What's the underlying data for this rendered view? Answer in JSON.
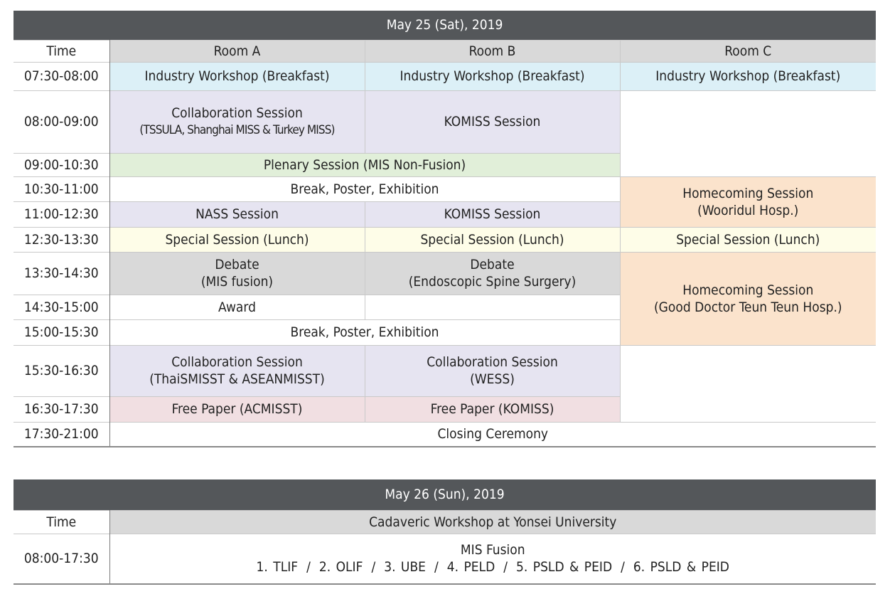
{
  "day1": {
    "title": "May 25 (Sat), 2019",
    "time_label": "Time",
    "rooms": [
      "Room A",
      "Room B",
      "Room C"
    ],
    "times": [
      "07:30-08:00",
      "08:00-09:00",
      "09:00-10:30",
      "10:30-11:00",
      "11:00-12:30",
      "12:30-13:30",
      "13:30-14:30",
      "14:30-15:00",
      "15:00-15:30",
      "15:30-16:30",
      "16:30-17:30",
      "17:30-21:00"
    ],
    "sessions": {
      "industry_a": "Industry Workshop (Breakfast)",
      "industry_b": "Industry Workshop (Breakfast)",
      "industry_c": "Industry Workshop (Breakfast)",
      "collab1_line1": "Collaboration Session",
      "collab1_line2": "(TSSULA, Shanghai MISS & Turkey MISS)",
      "komiss_b1": "KOMISS Session",
      "plenary": "Plenary Session (MIS Non-Fusion)",
      "break1": "Break, Poster, Exhibition",
      "homecoming1_line1": "Homecoming Session",
      "homecoming1_line2": "(Wooridul Hosp.)",
      "nass": "NASS Session",
      "komiss_b2": "KOMISS Session",
      "special_a": "Special Session (Lunch)",
      "special_b": "Special Session (Lunch)",
      "special_c": "Special Session (Lunch)",
      "debate_a_line1": "Debate",
      "debate_a_line2": "(MIS fusion)",
      "debate_b_line1": "Debate",
      "debate_b_line2": "(Endoscopic Spine Surgery)",
      "homecoming2_line1": "Homecoming Session",
      "homecoming2_line2": "(Good Doctor Teun Teun Hosp.)",
      "award": "Award",
      "break2": "Break, Poster, Exhibition",
      "collab2_line1": "Collaboration Session",
      "collab2_line2": "(ThaiSMISST & ASEANMISST)",
      "collab3_line1": "Collaboration Session",
      "collab3_line2": "(WESS)",
      "freepaper_a": "Free Paper (ACMISST)",
      "freepaper_b": "Free Paper (KOMISS)",
      "closing": "Closing Ceremony"
    }
  },
  "day2": {
    "title": "May 26 (Sun), 2019",
    "time_label": "Time",
    "workshop": "Cadaveric Workshop at Yonsei University",
    "time": "08:00-17:30",
    "topic": "MIS Fusion",
    "items": [
      "1. TLIF",
      "2. OLIF",
      "3. UBE",
      "4. PELD",
      "5. PSLD & PEID",
      "6. PSLD & PEID"
    ],
    "separator": "/"
  }
}
